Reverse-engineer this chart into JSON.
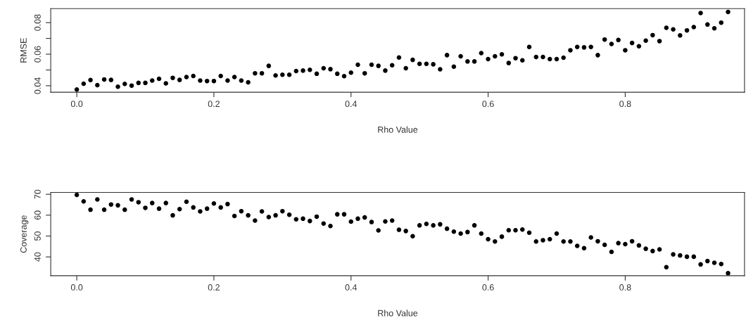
{
  "chart_data": [
    {
      "type": "scatter",
      "xlabel": "Rho Value",
      "ylabel": "RMSE",
      "marker": "circle",
      "x": [
        0.0,
        0.01,
        0.02,
        0.03,
        0.04,
        0.05,
        0.06,
        0.07,
        0.08,
        0.09,
        0.1,
        0.11,
        0.12,
        0.13,
        0.14,
        0.15,
        0.16,
        0.17,
        0.18,
        0.19,
        0.2,
        0.21,
        0.22,
        0.23,
        0.24,
        0.25,
        0.26,
        0.27,
        0.28,
        0.29,
        0.3,
        0.31,
        0.32,
        0.33,
        0.34,
        0.35,
        0.36,
        0.37,
        0.38,
        0.39,
        0.4,
        0.41,
        0.42,
        0.43,
        0.44,
        0.45,
        0.46,
        0.47,
        0.48,
        0.49,
        0.5,
        0.51,
        0.52,
        0.53,
        0.54,
        0.55,
        0.56,
        0.57,
        0.58,
        0.59,
        0.6,
        0.61,
        0.62,
        0.63,
        0.64,
        0.65,
        0.66,
        0.67,
        0.68,
        0.69,
        0.7,
        0.71,
        0.72,
        0.73,
        0.74,
        0.75,
        0.76,
        0.77,
        0.78,
        0.79,
        0.8,
        0.81,
        0.82,
        0.83,
        0.84,
        0.85,
        0.86,
        0.87,
        0.88,
        0.89,
        0.9,
        0.91,
        0.92,
        0.93,
        0.94,
        0.95
      ],
      "series": [
        {
          "color": "#000000",
          "values": [
            0.0376,
            0.0413,
            0.0436,
            0.0404,
            0.044,
            0.0437,
            0.0394,
            0.0412,
            0.0401,
            0.0418,
            0.0418,
            0.0433,
            0.0444,
            0.0415,
            0.045,
            0.0437,
            0.0455,
            0.0462,
            0.0433,
            0.043,
            0.043,
            0.0462,
            0.0433,
            0.0455,
            0.0433,
            0.0422,
            0.0479,
            0.0479,
            0.0526,
            0.0465,
            0.047,
            0.047,
            0.0493,
            0.0496,
            0.0501,
            0.0476,
            0.0511,
            0.0505,
            0.0476,
            0.0461,
            0.0483,
            0.0533,
            0.0479,
            0.0533,
            0.0526,
            0.0496,
            0.053,
            0.0579,
            0.0511,
            0.0564,
            0.0539,
            0.0539,
            0.0536,
            0.0504,
            0.0594,
            0.0521,
            0.0587,
            0.0554,
            0.0554,
            0.0607,
            0.0569,
            0.0587,
            0.0599,
            0.0544,
            0.0575,
            0.0561,
            0.0646,
            0.0582,
            0.0582,
            0.0569,
            0.0569,
            0.0578,
            0.0625,
            0.0646,
            0.0643,
            0.0646,
            0.0594,
            0.0693,
            0.0665,
            0.069,
            0.0625,
            0.0671,
            0.065,
            0.0686,
            0.0721,
            0.0683,
            0.0767,
            0.0757,
            0.0719,
            0.0751,
            0.0772,
            0.0861,
            0.0788,
            0.0764,
            0.08,
            0.0868
          ]
        }
      ],
      "xlim": [
        -0.038,
        0.974
      ],
      "xticks": [
        {
          "value": 0,
          "label": "0.0"
        },
        0.2,
        0.4,
        0.6,
        0.8
      ],
      "ylim": [
        0.0359,
        0.0889
      ],
      "yticks": [
        0.04,
        {
          "value": 0.05,
          "label": null
        },
        0.06,
        {
          "value": 0.07,
          "label": null
        },
        0.08
      ]
    },
    {
      "type": "scatter",
      "xlabel": "Rho Value",
      "ylabel": "Coverage",
      "marker": "circle",
      "x": [
        0.0,
        0.01,
        0.02,
        0.03,
        0.04,
        0.05,
        0.06,
        0.07,
        0.08,
        0.09,
        0.1,
        0.11,
        0.12,
        0.13,
        0.14,
        0.15,
        0.16,
        0.17,
        0.18,
        0.19,
        0.2,
        0.21,
        0.22,
        0.23,
        0.24,
        0.25,
        0.26,
        0.27,
        0.28,
        0.29,
        0.3,
        0.31,
        0.32,
        0.33,
        0.34,
        0.35,
        0.36,
        0.37,
        0.38,
        0.39,
        0.4,
        0.41,
        0.42,
        0.43,
        0.44,
        0.45,
        0.46,
        0.47,
        0.48,
        0.49,
        0.5,
        0.51,
        0.52,
        0.53,
        0.54,
        0.55,
        0.56,
        0.57,
        0.58,
        0.59,
        0.6,
        0.61,
        0.62,
        0.63,
        0.64,
        0.65,
        0.66,
        0.67,
        0.68,
        0.69,
        0.7,
        0.71,
        0.72,
        0.73,
        0.74,
        0.75,
        0.76,
        0.77,
        0.78,
        0.79,
        0.8,
        0.81,
        0.82,
        0.83,
        0.84,
        0.85,
        0.86,
        0.87,
        0.88,
        0.89,
        0.9,
        0.91,
        0.92,
        0.93,
        0.94,
        0.95
      ],
      "series": [
        {
          "color": "#000000",
          "values": [
            69.7,
            66.6,
            62.6,
            67.5,
            62.6,
            65.1,
            64.7,
            62.6,
            67.5,
            66.2,
            63.5,
            65.8,
            63.1,
            65.8,
            59.9,
            62.9,
            66.4,
            63.7,
            61.8,
            63.1,
            65.6,
            63.7,
            65.3,
            59.6,
            61.9,
            59.9,
            57.4,
            61.8,
            59.1,
            59.9,
            61.9,
            60.2,
            58.0,
            58.3,
            57.2,
            59.3,
            56.0,
            54.8,
            60.4,
            60.4,
            56.9,
            58.3,
            58.9,
            56.7,
            52.7,
            57.0,
            57.4,
            53.0,
            52.4,
            49.9,
            55.1,
            55.8,
            55.1,
            55.6,
            53.5,
            52.1,
            51.2,
            51.9,
            55.1,
            51.2,
            48.5,
            47.4,
            49.7,
            52.8,
            52.8,
            53.1,
            51.6,
            47.4,
            48.0,
            48.5,
            51.2,
            47.4,
            47.4,
            45.3,
            44.2,
            49.3,
            47.5,
            45.8,
            42.4,
            46.6,
            46.1,
            47.5,
            45.5,
            43.9,
            42.8,
            43.6,
            35.1,
            41.2,
            40.7,
            40.1,
            40.1,
            36.4,
            38.0,
            37.2,
            36.6,
            32.2
          ]
        }
      ],
      "xlim": [
        -0.038,
        0.974
      ],
      "xticks": [
        {
          "value": 0,
          "label": "0.0"
        },
        0.2,
        0.4,
        0.6,
        0.8
      ],
      "ylim": [
        31.0,
        70.9
      ],
      "yticks": [
        40,
        50,
        60,
        70
      ]
    }
  ]
}
